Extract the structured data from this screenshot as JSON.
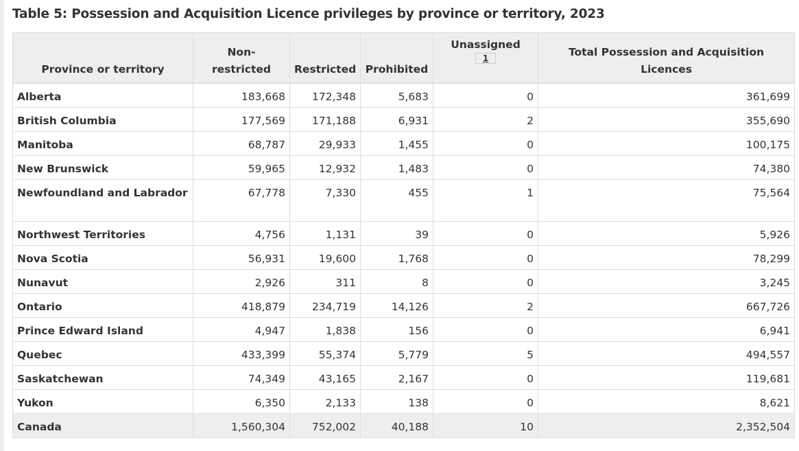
{
  "caption": "Table 5: Possession and Acquisition Licence privileges by province or territory, 2023",
  "columns": {
    "province": "Province or territory",
    "non_restricted": "Non-restricted",
    "restricted": "Restricted",
    "prohibited": "Prohibited",
    "unassigned": "Unassigned",
    "unassigned_footnote": "1",
    "total": "Total Possession and Acquisition Licences"
  },
  "rows": [
    {
      "province": "Alberta",
      "non_restricted": "183,668",
      "restricted": "172,348",
      "prohibited": "5,683",
      "unassigned": "0",
      "total": "361,699"
    },
    {
      "province": "British Columbia",
      "non_restricted": "177,569",
      "restricted": "171,188",
      "prohibited": "6,931",
      "unassigned": "2",
      "total": "355,690"
    },
    {
      "province": "Manitoba",
      "non_restricted": "68,787",
      "restricted": "29,933",
      "prohibited": "1,455",
      "unassigned": "0",
      "total": "100,175"
    },
    {
      "province": "New Brunswick",
      "non_restricted": "59,965",
      "restricted": "12,932",
      "prohibited": "1,483",
      "unassigned": "0",
      "total": "74,380"
    },
    {
      "province": "Newfoundland and Labrador",
      "non_restricted": "67,778",
      "restricted": "7,330",
      "prohibited": "455",
      "unassigned": "1",
      "total": "75,564"
    },
    {
      "province": "Northwest Territories",
      "non_restricted": "4,756",
      "restricted": "1,131",
      "prohibited": "39",
      "unassigned": "0",
      "total": "5,926"
    },
    {
      "province": "Nova Scotia",
      "non_restricted": "56,931",
      "restricted": "19,600",
      "prohibited": "1,768",
      "unassigned": "0",
      "total": "78,299"
    },
    {
      "province": "Nunavut",
      "non_restricted": "2,926",
      "restricted": "311",
      "prohibited": "8",
      "unassigned": "0",
      "total": "3,245"
    },
    {
      "province": "Ontario",
      "non_restricted": "418,879",
      "restricted": "234,719",
      "prohibited": "14,126",
      "unassigned": "2",
      "total": "667,726"
    },
    {
      "province": "Prince Edward Island",
      "non_restricted": "4,947",
      "restricted": "1,838",
      "prohibited": "156",
      "unassigned": "0",
      "total": "6,941"
    },
    {
      "province": "Quebec",
      "non_restricted": "433,399",
      "restricted": "55,374",
      "prohibited": "5,779",
      "unassigned": "5",
      "total": "494,557"
    },
    {
      "province": "Saskatchewan",
      "non_restricted": "74,349",
      "restricted": "43,165",
      "prohibited": "2,167",
      "unassigned": "0",
      "total": "119,681"
    },
    {
      "province": "Yukon",
      "non_restricted": "6,350",
      "restricted": "2,133",
      "prohibited": "138",
      "unassigned": "0",
      "total": "8,621"
    }
  ],
  "total_row": {
    "province": "Canada",
    "non_restricted": "1,560,304",
    "restricted": "752,002",
    "prohibited": "40,188",
    "unassigned": "10",
    "total": "2,352,504"
  }
}
